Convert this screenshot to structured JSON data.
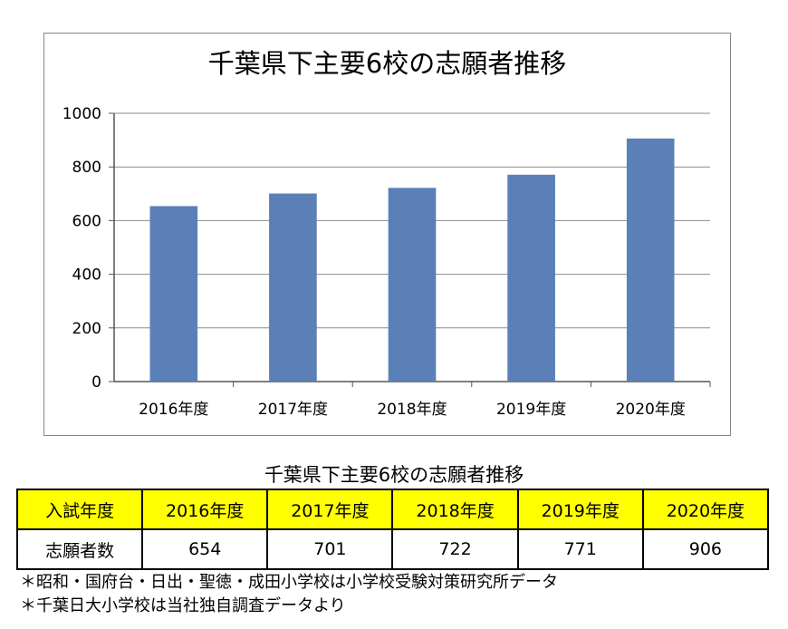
{
  "chart_data": {
    "type": "bar",
    "title": "千葉県下主要6校の志願者推移",
    "categories": [
      "2016年度",
      "2017年度",
      "2018年度",
      "2019年度",
      "2020年度"
    ],
    "values": [
      654,
      701,
      722,
      771,
      906
    ],
    "ylim": [
      0,
      1000
    ],
    "yticks": [
      0,
      200,
      400,
      600,
      800,
      1000
    ],
    "grid": true,
    "bar_color": "#5b80b8"
  },
  "table": {
    "title": "千葉県下主要6校の志願者推移",
    "header": [
      "入試年度",
      "2016年度",
      "2017年度",
      "2018年度",
      "2019年度",
      "2020年度"
    ],
    "row": [
      "志願者数",
      "654",
      "701",
      "722",
      "771",
      "906"
    ],
    "header_color": "#ffff00"
  },
  "notes": [
    "＊昭和・国府台・日出・聖徳・成田小学校は小学校受験対策研究所データ",
    "＊千葉日大小学校は当社独自調査データより"
  ]
}
